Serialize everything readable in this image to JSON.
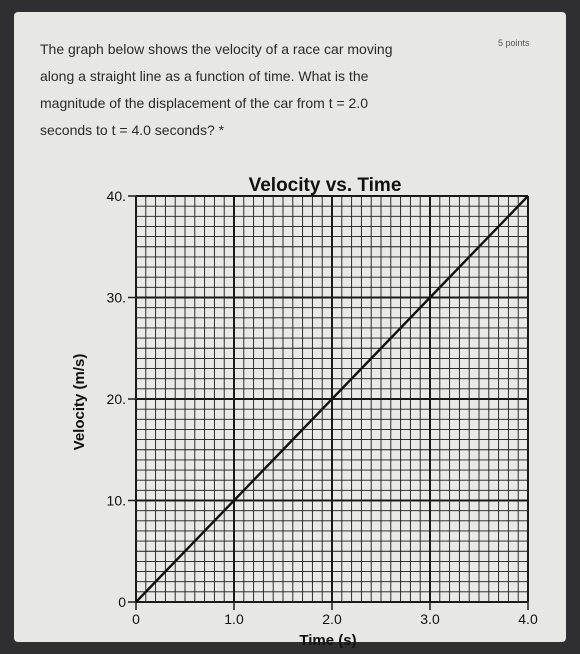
{
  "question": {
    "lines": [
      "The graph below shows the velocity of a race car moving",
      "along a straight line as a function of time. What is the",
      "magnitude of the displacement of the car from t = 2.0",
      "seconds to t = 4.0 seconds? *"
    ],
    "points": "5 points"
  },
  "chart_data": {
    "type": "line",
    "title": "Velocity vs. Time",
    "xlabel": "Time (s)",
    "ylabel": "Velocity (m/s)",
    "xlim": [
      0,
      4
    ],
    "ylim": [
      0,
      40
    ],
    "x_ticks": [
      "0",
      "1.0",
      "2.0",
      "3.0",
      "4.0"
    ],
    "y_ticks": [
      "0",
      "10.",
      "20.",
      "30.",
      "40."
    ],
    "grid": true,
    "series": [
      {
        "x": [
          0,
          4.0
        ],
        "y": [
          0,
          40
        ],
        "color": "#111111"
      }
    ]
  },
  "colors": {
    "card": "#e7e7e3",
    "grid": "#1a1a1a",
    "line": "#111111"
  }
}
